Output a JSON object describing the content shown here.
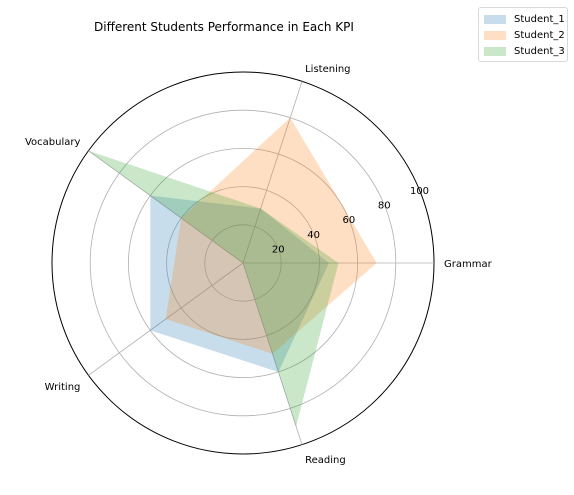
{
  "chart_data": {
    "type": "radar",
    "title": "Different Students Performance in Each KPI",
    "categories": [
      "Grammar",
      "Listening",
      "Vocabulary",
      "Writing",
      "Reading"
    ],
    "rlim": [
      0,
      100
    ],
    "rticks": [
      20,
      40,
      60,
      80,
      100
    ],
    "grid": true,
    "legend": "top-right",
    "series": [
      {
        "name": "Student_1",
        "values": [
          45,
          30,
          60,
          60,
          60
        ],
        "color": "#1f77b4"
      },
      {
        "name": "Student_2",
        "values": [
          70,
          80,
          40,
          50,
          50
        ],
        "color": "#ff7f0e"
      },
      {
        "name": "Student_3",
        "values": [
          50,
          30,
          100,
          0,
          90
        ],
        "color": "#2ca02c"
      }
    ],
    "fill_alpha": 0.25
  }
}
